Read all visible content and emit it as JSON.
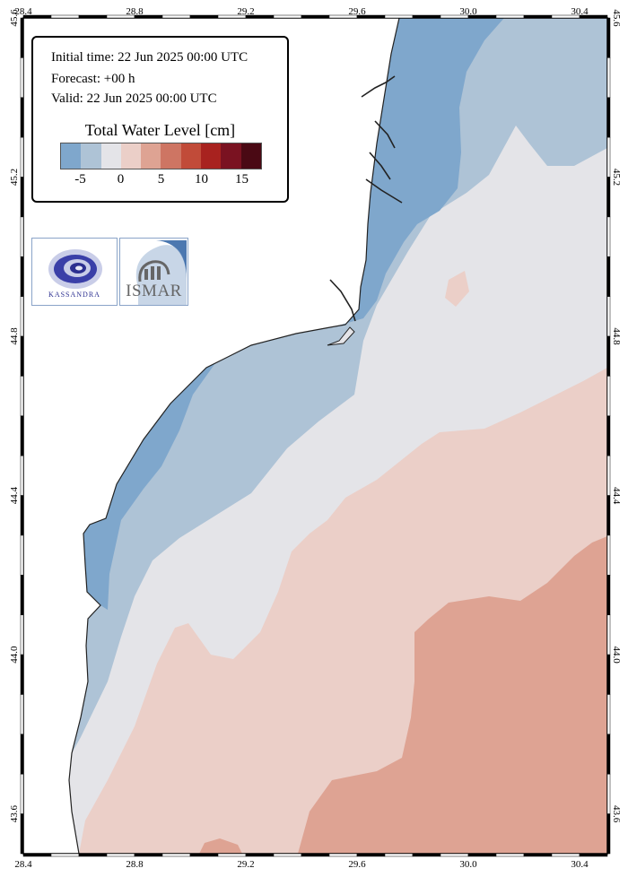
{
  "info": {
    "initial_time": "Initial time: 22 Jun 2025 00:00 UTC",
    "forecast": "Forecast: +00 h",
    "valid": "Valid: 22 Jun 2025 00:00 UTC"
  },
  "colorbar": {
    "title": "Total Water Level [cm]",
    "labels": [
      "-5",
      "0",
      "5",
      "10",
      "15"
    ],
    "colors": [
      "#7fa7cc",
      "#aec3d6",
      "#e4e4e8",
      "#ebcfc8",
      "#dea393",
      "#ce7563",
      "#c14b39",
      "#a8221f",
      "#7a1221",
      "#4a0914"
    ]
  },
  "axes": {
    "lon_labels": [
      "28.4",
      "28.8",
      "29.2",
      "29.6",
      "30.0",
      "30.4"
    ],
    "lat_labels": [
      "45.6",
      "45.2",
      "44.8",
      "44.4",
      "44.0",
      "43.6"
    ]
  },
  "logos": {
    "kassandra": "KASSANDRA",
    "ismar": "ISMAR"
  }
}
